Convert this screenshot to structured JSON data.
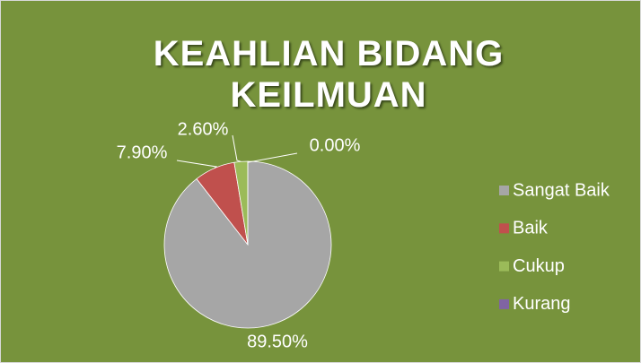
{
  "chart_data": {
    "type": "pie",
    "title": "KEAHLIAN BIDANG KEILMUAN",
    "categories": [
      "Sangat Baik",
      "Baik",
      "Cukup",
      "Kurang"
    ],
    "values": [
      89.5,
      7.9,
      2.6,
      0
    ],
    "value_labels": [
      "89.50%",
      "7.90%",
      "2.60%",
      "0.00%"
    ],
    "colors": [
      "#a6a6a6",
      "#c0504d",
      "#9bbb59",
      "#8064a2"
    ],
    "legend": "right"
  }
}
